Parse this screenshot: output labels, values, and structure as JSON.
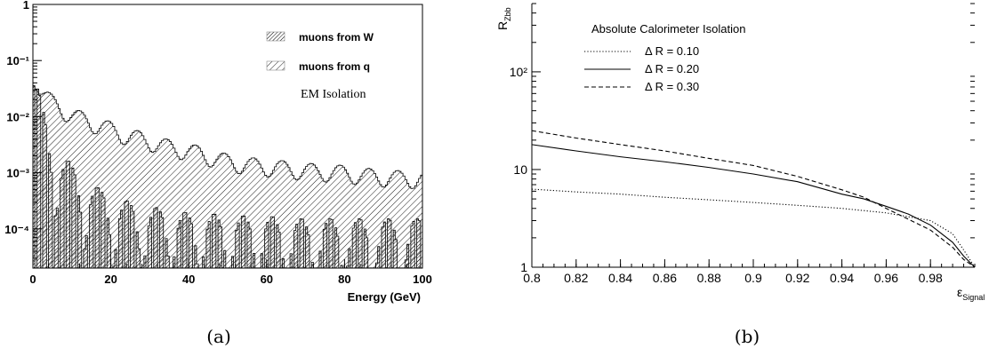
{
  "chart_data": [
    {
      "type": "histogram",
      "caption": "(a)",
      "annotation": "EM Isolation",
      "xlabel": "Energy (GeV)",
      "ylabel": "",
      "xlim": [
        0,
        100
      ],
      "ylim": [
        2e-05,
        1
      ],
      "yscale": "log",
      "x_ticks": [
        "0",
        "20",
        "40",
        "60",
        "80",
        "100"
      ],
      "y_ticks": [
        "10⁻⁴",
        "10⁻³",
        "10⁻²",
        "10⁻¹",
        "1"
      ],
      "legend_position": "top-right",
      "series": [
        {
          "name": "muons from W",
          "pattern": "dense-hatch",
          "x": [
            0.5,
            1.5,
            2.5,
            3.5,
            4.5,
            5.5,
            7,
            9,
            11,
            13,
            15,
            17,
            20,
            23,
            26,
            30,
            35,
            40,
            45,
            50,
            55,
            60,
            65,
            70,
            75,
            80,
            85,
            90,
            95,
            99
          ],
          "values": [
            0.035,
            0.015,
            0.008,
            0.004,
            0.0025,
            0.0018,
            0.0012,
            0.0009,
            0.0006,
            0.00045,
            0.00035,
            0.00028,
            0.00022,
            0.00018,
            0.00015,
            0.00013,
            0.00012,
            0.0001,
            0.0001,
            9e-05,
            9e-05,
            9e-05,
            8e-05,
            8e-05,
            8e-05,
            8e-05,
            8e-05,
            8e-05,
            8e-05,
            8e-05
          ]
        },
        {
          "name": "muons from q",
          "pattern": "diagonal-hatch",
          "x": [
            0.5,
            1,
            2,
            3,
            4,
            5,
            6,
            8,
            10,
            12,
            14,
            16,
            18,
            20,
            22,
            25,
            28,
            31,
            34,
            37,
            40,
            43,
            46,
            50,
            55,
            60,
            65,
            70,
            75,
            80,
            85,
            90,
            95,
            99.5
          ],
          "values": [
            0.05,
            0.045,
            0.032,
            0.025,
            0.021,
            0.018,
            0.016,
            0.013,
            0.011,
            0.0095,
            0.0085,
            0.0075,
            0.0068,
            0.006,
            0.0052,
            0.0045,
            0.004,
            0.0035,
            0.003,
            0.0027,
            0.0025,
            0.0022,
            0.0019,
            0.0016,
            0.0014,
            0.0013,
            0.0012,
            0.0011,
            0.00105,
            0.001,
            0.0009,
            0.00085,
            0.0008,
            0.0008
          ]
        }
      ]
    },
    {
      "type": "line",
      "caption": "(b)",
      "legend_title": "Absolute Calorimeter Isolation",
      "ylabel": "R_Zbb",
      "xlabel": "ε_Signal",
      "xlim": [
        0.8,
        1.0
      ],
      "ylim": [
        1,
        500
      ],
      "yscale": "log",
      "x_ticks": [
        "0.8",
        "0.82",
        "0.84",
        "0.86",
        "0.88",
        "0.9",
        "0.92",
        "0.94",
        "0.96",
        "0.98"
      ],
      "y_ticks": [
        "1",
        "10",
        "10²"
      ],
      "legend_position": "top-left",
      "series": [
        {
          "name": "Δ R = 0.10",
          "style": "dotted",
          "x": [
            0.8,
            0.82,
            0.84,
            0.86,
            0.88,
            0.9,
            0.92,
            0.94,
            0.96,
            0.98,
            0.99,
            0.995,
            1.0
          ],
          "values": [
            6.3,
            5.9,
            5.6,
            5.2,
            4.9,
            4.6,
            4.3,
            4.0,
            3.6,
            3.0,
            2.2,
            1.5,
            1.0
          ]
        },
        {
          "name": "Δ R = 0.20",
          "style": "solid",
          "x": [
            0.8,
            0.82,
            0.84,
            0.86,
            0.88,
            0.9,
            0.92,
            0.94,
            0.95,
            0.96,
            0.97,
            0.98,
            0.99,
            0.995,
            1.0
          ],
          "values": [
            18,
            15.5,
            13.5,
            12.0,
            10.5,
            9.0,
            7.5,
            5.6,
            5.0,
            4.2,
            3.5,
            2.7,
            1.8,
            1.3,
            1.0
          ]
        },
        {
          "name": "Δ R = 0.30",
          "style": "dashed",
          "x": [
            0.8,
            0.82,
            0.84,
            0.86,
            0.88,
            0.9,
            0.92,
            0.94,
            0.95,
            0.96,
            0.97,
            0.98,
            0.99,
            0.995,
            1.0
          ],
          "values": [
            25,
            21,
            18,
            15.5,
            13,
            11,
            8.5,
            6.2,
            5.2,
            4.0,
            3.1,
            2.4,
            1.6,
            1.2,
            1.0
          ]
        }
      ]
    }
  ]
}
